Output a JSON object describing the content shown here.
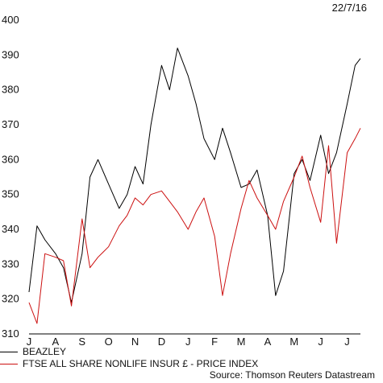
{
  "date": "22/7/16",
  "source": "Source: Thomson Reuters Datastream",
  "chart_data": {
    "type": "line",
    "ylim": [
      310,
      400
    ],
    "yticks": [
      310,
      320,
      330,
      340,
      350,
      360,
      370,
      380,
      390,
      400
    ],
    "xtick_labels": [
      "J",
      "A",
      "S",
      "O",
      "N",
      "D",
      "J",
      "F",
      "M",
      "A",
      "M",
      "J",
      "J"
    ],
    "grid": false,
    "legend_position": "bottom-left",
    "series": [
      {
        "name": "BEAZLEY",
        "color": "#000000",
        "x": [
          0,
          0.3,
          0.6,
          1,
          1.3,
          1.6,
          2,
          2.3,
          2.6,
          3,
          3.4,
          3.7,
          4,
          4.3,
          4.6,
          5,
          5.3,
          5.6,
          6,
          6.3,
          6.6,
          7,
          7.3,
          7.6,
          8,
          8.3,
          8.6,
          9,
          9.3,
          9.6,
          10,
          10.3,
          10.6,
          11,
          11.3,
          11.6,
          12,
          12.3,
          12.5
        ],
        "y": [
          322,
          341,
          337,
          333,
          329,
          319,
          333,
          355,
          360,
          353,
          346,
          350,
          358,
          353,
          370,
          387,
          380,
          392,
          384,
          376,
          366,
          360,
          369,
          362,
          352,
          353,
          357,
          344,
          321,
          328,
          356,
          360,
          354,
          367,
          356,
          362,
          376,
          387,
          389
        ]
      },
      {
        "name": "FTSE ALL SHARE NONLIFE INSUR £ - PRICE INDEX",
        "color": "#cc1010",
        "x": [
          0,
          0.3,
          0.6,
          1,
          1.3,
          1.6,
          2,
          2.3,
          2.6,
          3,
          3.4,
          3.7,
          4,
          4.3,
          4.6,
          5,
          5.3,
          5.6,
          6,
          6.3,
          6.6,
          7,
          7.3,
          7.6,
          8,
          8.3,
          8.6,
          9,
          9.3,
          9.6,
          10,
          10.3,
          10.6,
          11,
          11.3,
          11.6,
          12,
          12.3,
          12.5
        ],
        "y": [
          319,
          313,
          333,
          332,
          331,
          318,
          343,
          329,
          332,
          335,
          341,
          344,
          349,
          347,
          350,
          351,
          348,
          345,
          340,
          345,
          349,
          338,
          321,
          333,
          346,
          354,
          349,
          344,
          340,
          348,
          355,
          361,
          352,
          342,
          364,
          336,
          362,
          366,
          369
        ]
      }
    ]
  }
}
